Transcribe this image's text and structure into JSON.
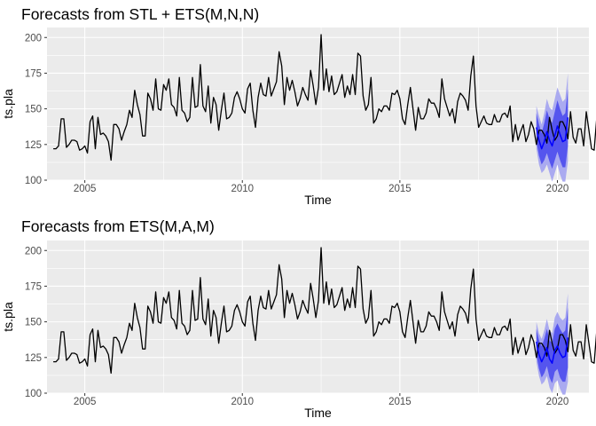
{
  "chart_data": [
    {
      "type": "line",
      "title": "Forecasts from STL +  ETS(M,N,N)",
      "xlabel": "Time",
      "ylabel": "ts.pla",
      "xlim": [
        2003.8,
        2021.0
      ],
      "ylim": [
        100,
        207
      ],
      "x_ticks": [
        2005,
        2010,
        2015,
        2020
      ],
      "y_ticks": [
        100,
        125,
        150,
        175,
        200
      ],
      "grid": true,
      "series": [
        {
          "x_start": 2004.0,
          "frequency": 12,
          "values": [
            122,
            122,
            124,
            143,
            143,
            123,
            125,
            128,
            128,
            127,
            121,
            122,
            124,
            119,
            141,
            145,
            122,
            144,
            132,
            133,
            131,
            127,
            114,
            139,
            139,
            136,
            128,
            134,
            139,
            149,
            144,
            163,
            153,
            146,
            131,
            131,
            161,
            157,
            149,
            171,
            150,
            149,
            167,
            163,
            171,
            153,
            151,
            145,
            172,
            149,
            147,
            141,
            144,
            172,
            151,
            152,
            181,
            152,
            148,
            166,
            140,
            158,
            153,
            135,
            149,
            161,
            143,
            144,
            147,
            158,
            162,
            157,
            150,
            147,
            164,
            168,
            149,
            137,
            158,
            168,
            160,
            159,
            172,
            159,
            164,
            169,
            190,
            180,
            153,
            172,
            163,
            170,
            162,
            152,
            157,
            165,
            160,
            156,
            177,
            166,
            153,
            165,
            202,
            163,
            178,
            162,
            173,
            160,
            162,
            168,
            174,
            158,
            166,
            160,
            174,
            160,
            189,
            187,
            159,
            149,
            153,
            172,
            140,
            143,
            150,
            148,
            152,
            152,
            149,
            161,
            160,
            163,
            157,
            143,
            139,
            153,
            165,
            150,
            135,
            151,
            143,
            143,
            147,
            157,
            154,
            154,
            150,
            144,
            171,
            157,
            151,
            145,
            150,
            140,
            155,
            161,
            159,
            156,
            149,
            173,
            187,
            152,
            137,
            141,
            145,
            140,
            139,
            139,
            146,
            141,
            141,
            146,
            147,
            144,
            152,
            127,
            139,
            128,
            134,
            139,
            127,
            132,
            141,
            136,
            125,
            135,
            135,
            132,
            126,
            144,
            135,
            128,
            131,
            141,
            141,
            137,
            129,
            148,
            130,
            126,
            136,
            136,
            124,
            148,
            135,
            122,
            121,
            144,
            130,
            120,
            124,
            149
          ]
        }
      ],
      "forecast": {
        "x_start": 2019.3333,
        "frequency": 12,
        "mean": [
          137,
          128,
          122,
          127,
          134,
          128,
          124,
          131,
          138,
          132,
          127,
          128,
          144
        ],
        "lo80": [
          127,
          117,
          111,
          114,
          119,
          113,
          108,
          114,
          120,
          114,
          109,
          109,
          124
        ],
        "hi80": [
          147,
          139,
          133,
          140,
          149,
          143,
          140,
          148,
          156,
          150,
          145,
          147,
          164
        ],
        "lo95": [
          122,
          111,
          105,
          107,
          111,
          105,
          99,
          105,
          111,
          104,
          99,
          99,
          113
        ],
        "hi95": [
          152,
          145,
          139,
          147,
          157,
          151,
          149,
          157,
          165,
          160,
          155,
          157,
          175
        ]
      },
      "colors": {
        "series": "#000000",
        "mean": "#0000ff",
        "band80": "#5555ee",
        "band95": "#aaaaf0",
        "panel": "#ebebeb",
        "grid": "#ffffff"
      }
    },
    {
      "type": "line",
      "title": "Forecasts from ETS(M,A,M)",
      "xlabel": "Time",
      "ylabel": "ts.pla",
      "xlim": [
        2003.8,
        2021.0
      ],
      "ylim": [
        100,
        207
      ],
      "x_ticks": [
        2005,
        2010,
        2015,
        2020
      ],
      "y_ticks": [
        100,
        125,
        150,
        175,
        200
      ],
      "grid": true,
      "series": [
        {
          "x_start": 2004.0,
          "frequency": 12,
          "values": [
            122,
            122,
            124,
            143,
            143,
            123,
            125,
            128,
            128,
            127,
            121,
            122,
            124,
            119,
            141,
            145,
            122,
            144,
            132,
            133,
            131,
            127,
            114,
            139,
            139,
            136,
            128,
            134,
            139,
            149,
            144,
            163,
            153,
            146,
            131,
            131,
            161,
            157,
            149,
            171,
            150,
            149,
            167,
            163,
            171,
            153,
            151,
            145,
            172,
            149,
            147,
            141,
            144,
            172,
            151,
            152,
            181,
            152,
            148,
            166,
            140,
            158,
            153,
            135,
            149,
            161,
            143,
            144,
            147,
            158,
            162,
            157,
            150,
            147,
            164,
            168,
            149,
            137,
            158,
            168,
            160,
            159,
            172,
            159,
            164,
            169,
            190,
            180,
            153,
            172,
            163,
            170,
            162,
            152,
            157,
            165,
            160,
            156,
            177,
            166,
            153,
            165,
            202,
            163,
            178,
            162,
            173,
            160,
            162,
            168,
            174,
            158,
            166,
            160,
            174,
            160,
            189,
            187,
            159,
            149,
            153,
            172,
            140,
            143,
            150,
            148,
            152,
            152,
            149,
            161,
            160,
            163,
            157,
            143,
            139,
            153,
            165,
            150,
            135,
            151,
            143,
            143,
            147,
            157,
            154,
            154,
            150,
            144,
            171,
            157,
            151,
            145,
            150,
            140,
            155,
            161,
            159,
            156,
            149,
            173,
            187,
            152,
            137,
            141,
            145,
            140,
            139,
            139,
            146,
            141,
            141,
            146,
            147,
            144,
            152,
            127,
            139,
            128,
            134,
            139,
            127,
            132,
            141,
            136,
            125,
            135,
            135,
            132,
            126,
            144,
            135,
            128,
            131,
            141,
            141,
            137,
            129,
            148,
            130,
            126,
            136,
            136,
            124,
            148,
            135,
            122,
            121,
            144,
            130,
            120,
            124,
            149
          ]
        }
      ],
      "forecast": {
        "x_start": 2019.3333,
        "frequency": 12,
        "mean": [
          136,
          127,
          122,
          126,
          132,
          124,
          121,
          130,
          133,
          128,
          125,
          126,
          139
        ],
        "lo80": [
          127,
          117,
          111,
          114,
          119,
          111,
          107,
          115,
          117,
          111,
          108,
          108,
          118
        ],
        "hi80": [
          145,
          137,
          133,
          138,
          145,
          137,
          135,
          145,
          149,
          145,
          142,
          144,
          160
        ],
        "lo95": [
          122,
          112,
          106,
          108,
          112,
          104,
          100,
          107,
          109,
          103,
          99,
          99,
          108
        ],
        "hi95": [
          150,
          142,
          138,
          144,
          152,
          144,
          142,
          153,
          157,
          153,
          151,
          153,
          170
        ]
      },
      "colors": {
        "series": "#000000",
        "mean": "#0000ff",
        "band80": "#5555ee",
        "band95": "#aaaaf0",
        "panel": "#ebebeb",
        "grid": "#ffffff"
      }
    }
  ]
}
